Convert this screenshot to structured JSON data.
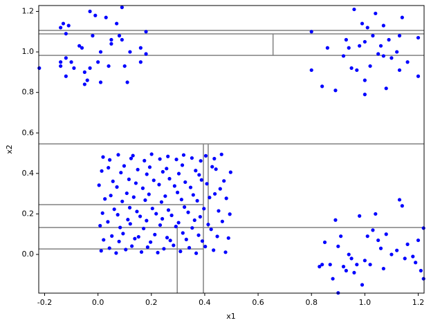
{
  "chart_data": {
    "type": "scatter",
    "color": "#0000ff",
    "line_color": "#808080",
    "xlabel": "x1",
    "ylabel": "x2",
    "xlim": [
      -0.222,
      1.222
    ],
    "ylim": [
      -0.191,
      1.229
    ],
    "xticks": [
      -0.2,
      {
        "value": 0,
        "label": "0.0"
      },
      0.2,
      0.4,
      0.6,
      0.8,
      {
        "value": 1,
        "label": "1.0"
      },
      1.2
    ],
    "yticks": [
      {
        "value": 0,
        "label": "0.0"
      },
      0.2,
      0.4,
      0.6,
      0.8,
      {
        "value": 1,
        "label": "1.0"
      },
      1.2
    ],
    "segments": [
      {
        "x": [
          -0.222,
          1.222
        ],
        "y": [
          1.106,
          1.106
        ]
      },
      {
        "x": [
          -0.222,
          1.222
        ],
        "y": [
          1.089,
          1.089
        ]
      },
      {
        "x": [
          -0.222,
          1.222
        ],
        "y": [
          0.983,
          0.983
        ]
      },
      {
        "x": [
          0.656,
          0.656
        ],
        "y": [
          0.983,
          1.089
        ]
      },
      {
        "x": [
          -0.222,
          1.222
        ],
        "y": [
          0.546,
          0.546
        ]
      },
      {
        "x": [
          0.395,
          0.395
        ],
        "y": [
          -0.191,
          0.546
        ]
      },
      {
        "x": [
          0.413,
          0.413
        ],
        "y": [
          0.133,
          0.546
        ]
      },
      {
        "x": [
          -0.222,
          0.395
        ],
        "y": [
          0.246,
          0.246
        ]
      },
      {
        "x": [
          -0.222,
          1.222
        ],
        "y": [
          0.133,
          0.133
        ]
      },
      {
        "x": [
          0.297,
          0.297
        ],
        "y": [
          -0.191,
          0.133
        ]
      },
      {
        "x": [
          -0.222,
          0.395
        ],
        "y": [
          0.027,
          0.027
        ]
      }
    ],
    "x": [
      -0.14,
      -0.13,
      -0.12,
      -0.11,
      -0.14,
      -0.14,
      -0.12,
      -0.12,
      -0.1,
      -0.09,
      -0.07,
      -0.06,
      -0.05,
      -0.05,
      -0.04,
      -0.03,
      -0.02,
      -0.01,
      0.0,
      0.01,
      0.01,
      0.03,
      0.04,
      0.05,
      0.07,
      0.09,
      0.09,
      0.1,
      0.11,
      0.12,
      0.16,
      0.16,
      0.18,
      0.18,
      -0.22,
      -0.03,
      0.05,
      0.08,
      0.8,
      0.8,
      0.84,
      0.86,
      0.89,
      0.92,
      0.93,
      0.95,
      0.96,
      0.97,
      0.98,
      0.99,
      1.0,
      1.0,
      1.01,
      1.02,
      1.03,
      1.04,
      1.05,
      1.06,
      1.07,
      1.08,
      1.09,
      1.1,
      1.12,
      1.13,
      1.13,
      1.14,
      1.16,
      1.2,
      1.2,
      0.94,
      1.0,
      1.07,
      0.83,
      0.84,
      0.85,
      0.87,
      0.88,
      0.89,
      0.9,
      0.91,
      0.92,
      0.93,
      0.94,
      0.95,
      0.96,
      0.97,
      0.98,
      0.99,
      1.0,
      1.02,
      1.03,
      1.04,
      1.05,
      1.06,
      1.07,
      1.08,
      1.1,
      1.12,
      1.13,
      1.14,
      1.15,
      1.16,
      1.18,
      1.19,
      1.2,
      1.21,
      1.22,
      1.22,
      0.9,
      1.01,
      0.012,
      0.043,
      0.068,
      0.104,
      0.127,
      0.163,
      0.186,
      0.224,
      0.247,
      0.283,
      0.309,
      0.342,
      0.368,
      0.402,
      0.433,
      0.478,
      0.021,
      0.052,
      0.079,
      0.094,
      0.138,
      0.152,
      0.197,
      0.213,
      0.259,
      0.271,
      0.318,
      0.331,
      0.377,
      0.391,
      0.447,
      0.489,
      0.008,
      0.037,
      0.083,
      0.112,
      0.121,
      0.171,
      0.182,
      0.233,
      0.241,
      0.292,
      0.302,
      0.353,
      0.362,
      0.413,
      0.424,
      0.466,
      0.017,
      0.061,
      0.074,
      0.119,
      0.146,
      0.158,
      0.204,
      0.218,
      0.264,
      0.276,
      0.324,
      0.338,
      0.383,
      0.397,
      0.452,
      0.494,
      0.026,
      0.048,
      0.091,
      0.108,
      0.134,
      0.177,
      0.191,
      0.238,
      0.252,
      0.298,
      0.313,
      0.357,
      0.372,
      0.418,
      0.438,
      0.481,
      0.004,
      0.056,
      0.071,
      0.116,
      0.142,
      0.168,
      0.209,
      0.229,
      0.268,
      0.287,
      0.327,
      0.347,
      0.388,
      0.408,
      0.458,
      0.472,
      0.014,
      0.039,
      0.086,
      0.098,
      0.149,
      0.183,
      0.194,
      0.243,
      0.257,
      0.303,
      0.316,
      0.366,
      0.379,
      0.428,
      0.442,
      0.497,
      0.019,
      0.044,
      0.076,
      0.124,
      0.131,
      0.174,
      0.201,
      0.232,
      0.262,
      0.294,
      0.321,
      0.352,
      0.385,
      0.404,
      0.436,
      0.463
    ],
    "values": [
      1.12,
      1.14,
      1.09,
      1.13,
      0.93,
      0.95,
      0.97,
      0.88,
      0.95,
      0.92,
      1.03,
      1.02,
      0.84,
      0.9,
      0.86,
      0.92,
      1.08,
      1.18,
      0.95,
      1.0,
      0.85,
      1.17,
      0.93,
      1.06,
      1.14,
      1.22,
      1.06,
      0.93,
      0.85,
      1.0,
      1.02,
      0.95,
      1.1,
      0.99,
      0.92,
      1.2,
      1.04,
      1.08,
      1.1,
      0.91,
      0.83,
      1.02,
      0.81,
      0.98,
      1.06,
      0.92,
      1.21,
      0.91,
      1.03,
      1.14,
      0.79,
      0.86,
      1.12,
      0.93,
      1.08,
      1.19,
      0.99,
      1.03,
      0.98,
      0.82,
      1.06,
      0.97,
      1.0,
      1.08,
      0.91,
      1.17,
      0.95,
      1.07,
      0.88,
      1.02,
      1.05,
      1.13,
      -0.06,
      -0.05,
      0.06,
      -0.05,
      -0.12,
      0.17,
      -0.19,
      0.09,
      -0.06,
      -0.08,
      0.0,
      -0.02,
      -0.09,
      -0.05,
      0.19,
      -0.15,
      -0.03,
      -0.05,
      0.12,
      0.2,
      0.07,
      0.03,
      -0.07,
      0.1,
      0.0,
      0.02,
      0.27,
      0.24,
      -0.02,
      0.05,
      -0.01,
      -0.04,
      0.07,
      -0.08,
      0.13,
      -0.12,
      0.04,
      0.09,
      0.018,
      0.031,
      0.007,
      0.024,
      0.041,
      0.012,
      0.036,
      0.009,
      0.028,
      0.045,
      0.015,
      0.033,
      0.006,
      0.039,
      0.021,
      0.011,
      0.072,
      0.091,
      0.064,
      0.103,
      0.078,
      0.087,
      0.061,
      0.098,
      0.083,
      0.069,
      0.106,
      0.074,
      0.095,
      0.066,
      0.089,
      0.081,
      0.142,
      0.161,
      0.133,
      0.172,
      0.151,
      0.128,
      0.167,
      0.145,
      0.176,
      0.138,
      0.157,
      0.131,
      0.169,
      0.148,
      0.124,
      0.163,
      0.204,
      0.223,
      0.196,
      0.231,
      0.212,
      0.188,
      0.227,
      0.201,
      0.219,
      0.193,
      0.234,
      0.208,
      0.186,
      0.226,
      0.215,
      0.199,
      0.274,
      0.291,
      0.262,
      0.302,
      0.283,
      0.268,
      0.297,
      0.259,
      0.288,
      0.306,
      0.271,
      0.294,
      0.265,
      0.281,
      0.299,
      0.277,
      0.342,
      0.361,
      0.333,
      0.371,
      0.352,
      0.327,
      0.366,
      0.345,
      0.374,
      0.338,
      0.357,
      0.331,
      0.368,
      0.349,
      0.324,
      0.363,
      0.412,
      0.428,
      0.404,
      0.437,
      0.419,
      0.396,
      0.431,
      0.408,
      0.424,
      0.399,
      0.441,
      0.414,
      0.393,
      0.433,
      0.421,
      0.406,
      0.481,
      0.467,
      0.492,
      0.474,
      0.488,
      0.463,
      0.495,
      0.471,
      0.484,
      0.469,
      0.491,
      0.476,
      0.462,
      0.487,
      0.473,
      0.494
    ]
  }
}
